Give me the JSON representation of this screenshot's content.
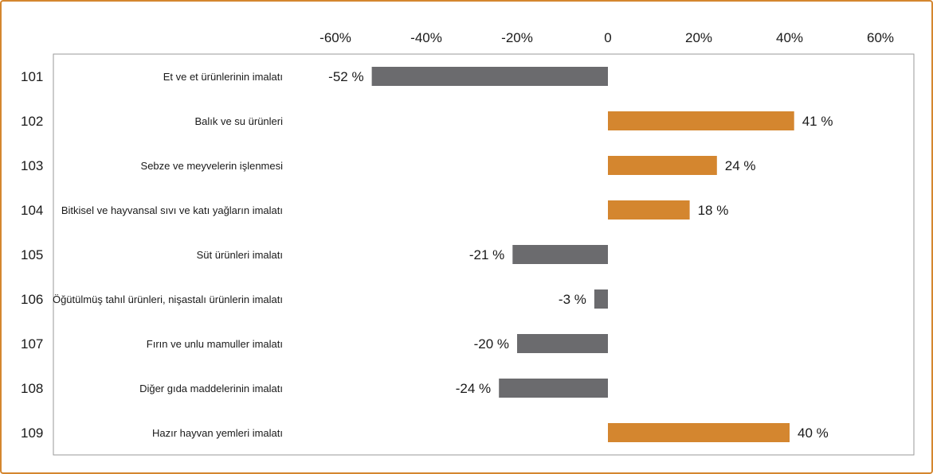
{
  "chart_data": {
    "type": "bar",
    "orientation": "horizontal",
    "title": "",
    "xlabel": "",
    "ylabel": "",
    "xlim": [
      -60,
      60
    ],
    "x_ticks": [
      -60,
      -40,
      -20,
      0,
      20,
      40,
      60
    ],
    "x_tick_labels": [
      "-60%",
      "-40%",
      "-20%",
      "0",
      "20%",
      "40%",
      "60%"
    ],
    "grid": false,
    "codes": [
      "101",
      "102",
      "103",
      "104",
      "105",
      "106",
      "107",
      "108",
      "109"
    ],
    "categories": [
      "Et ve et ürünlerinin imalatı",
      "Balık ve su ürünleri",
      "Sebze ve meyvelerin işlenmesi",
      "Bitkisel ve hayvansal sıvı ve katı yağların imalatı",
      "Süt ürünleri imalatı",
      "Öğütülmüş tahıl ürünleri, nişastalı ürünlerin imalatı",
      "Fırın ve unlu mamuller imalatı",
      "Diğer gıda maddelerinin imalatı",
      "Hazır hayvan yemleri imalatı"
    ],
    "values": [
      -52,
      41,
      24,
      18,
      -21,
      -3,
      -20,
      -24,
      40
    ],
    "value_labels": [
      "-52 %",
      "41 %",
      "24 %",
      "18 %",
      "-21 %",
      "-3 %",
      "-20 %",
      "-24 %",
      "40 %"
    ],
    "colors": {
      "positive": "#d4862f",
      "negative": "#6b6b6e",
      "frame": "#d4862f",
      "axis_box": "#9a9a9a"
    }
  }
}
